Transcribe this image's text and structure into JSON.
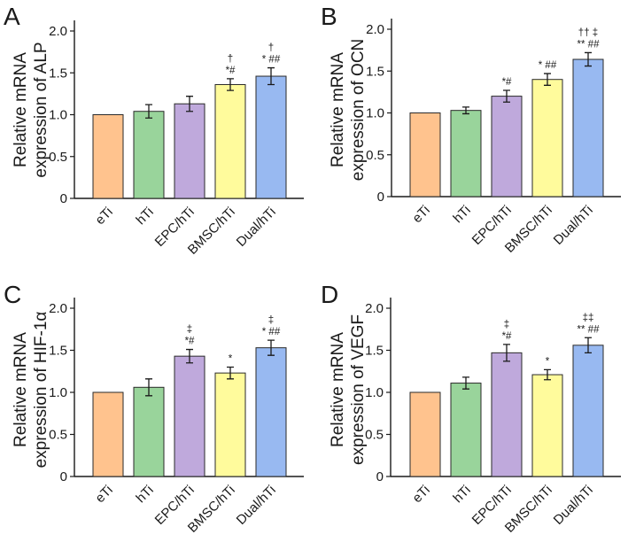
{
  "chart_data": [
    {
      "type": "bar",
      "panel": "A",
      "ylabel_lines": [
        "Relative mRNA",
        "expression of ALP"
      ],
      "categories": [
        "eTi",
        "hTi",
        "EPC/hTi",
        "BMSC/hTi",
        "Dual/hTi"
      ],
      "values": [
        1.0,
        1.04,
        1.13,
        1.36,
        1.46
      ],
      "errors": [
        0.0,
        0.08,
        0.09,
        0.07,
        0.1
      ],
      "significance": [
        [],
        [],
        [],
        [
          "†",
          "*#"
        ],
        [
          "†",
          "* ##"
        ]
      ],
      "ylim": [
        0,
        2.0
      ],
      "yticks": [
        "0",
        "0.5",
        "1.0",
        "1.5",
        "2.0"
      ]
    },
    {
      "type": "bar",
      "panel": "B",
      "ylabel_lines": [
        "Relative mRNA",
        "expression of OCN"
      ],
      "categories": [
        "eTi",
        "hTi",
        "EPC/hTi",
        "BMSC/hTi",
        "Dual/hTi"
      ],
      "values": [
        1.0,
        1.03,
        1.2,
        1.4,
        1.64
      ],
      "errors": [
        0.0,
        0.04,
        0.07,
        0.07,
        0.08
      ],
      "significance": [
        [],
        [],
        [
          "*#"
        ],
        [
          "* ##"
        ],
        [
          "†† ‡",
          "** ##"
        ]
      ],
      "ylim": [
        0,
        2.0
      ],
      "yticks": [
        "0",
        "0.5",
        "1.0",
        "1.5",
        "2.0"
      ]
    },
    {
      "type": "bar",
      "panel": "C",
      "ylabel_lines": [
        "Relative mRNA",
        "expression of HIF-1α"
      ],
      "categories": [
        "eTi",
        "hTi",
        "EPC/hTi",
        "BMSC/hTi",
        "Dual/hTi"
      ],
      "values": [
        1.0,
        1.06,
        1.43,
        1.23,
        1.53
      ],
      "errors": [
        0.0,
        0.1,
        0.08,
        0.07,
        0.09
      ],
      "significance": [
        [],
        [],
        [
          "‡",
          "*#"
        ],
        [
          "*"
        ],
        [
          "‡",
          "* ##"
        ]
      ],
      "ylim": [
        0,
        2.0
      ],
      "yticks": [
        "0",
        "0.5",
        "1.0",
        "1.5",
        "2.0"
      ]
    },
    {
      "type": "bar",
      "panel": "D",
      "ylabel_lines": [
        "Relative mRNA",
        "expression of VEGF"
      ],
      "categories": [
        "eTi",
        "hTi",
        "EPC/hTi",
        "BMSC/hTi",
        "Dual/hTi"
      ],
      "values": [
        1.0,
        1.11,
        1.47,
        1.21,
        1.56
      ],
      "errors": [
        0.0,
        0.07,
        0.1,
        0.06,
        0.09
      ],
      "significance": [
        [],
        [],
        [
          "‡",
          "*#"
        ],
        [
          "*"
        ],
        [
          "‡‡",
          "** ##"
        ]
      ],
      "ylim": [
        0,
        2.0
      ],
      "yticks": [
        "0",
        "0.5",
        "1.0",
        "1.5",
        "2.0"
      ]
    }
  ],
  "colors": {
    "bars": [
      "#FFC38E",
      "#99D49B",
      "#BFA9DC",
      "#FFFB9C",
      "#98B9F1"
    ],
    "axis": "#1a1a1a",
    "text": "#1a1a1a",
    "background": "#ffffff"
  }
}
